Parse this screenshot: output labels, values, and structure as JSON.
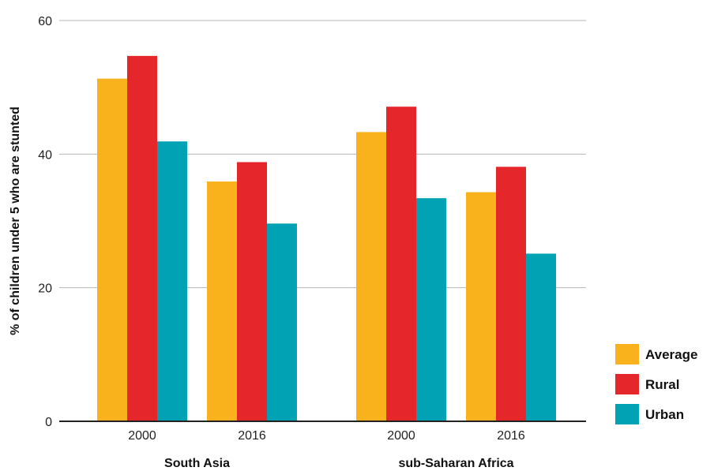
{
  "chart_data": {
    "type": "bar",
    "ylabel": "% of children under 5 who are stunted",
    "ylim": [
      0,
      60
    ],
    "yticks": [
      0,
      20,
      40,
      60
    ],
    "grid": true,
    "legend_position": "right",
    "groups": [
      {
        "label": "South Asia",
        "categories": [
          "2000",
          "2016"
        ]
      },
      {
        "label": "sub-Saharan Africa",
        "categories": [
          "2000",
          "2016"
        ]
      }
    ],
    "series": [
      {
        "name": "Average",
        "color": "#f9b21b",
        "values": [
          51.3,
          35.9,
          43.3,
          34.3
        ]
      },
      {
        "name": "Rural",
        "color": "#e5262b",
        "values": [
          54.7,
          38.8,
          47.1,
          38.1
        ]
      },
      {
        "name": "Urban",
        "color": "#00a2b4",
        "values": [
          41.9,
          29.6,
          33.4,
          25.1
        ]
      }
    ]
  }
}
